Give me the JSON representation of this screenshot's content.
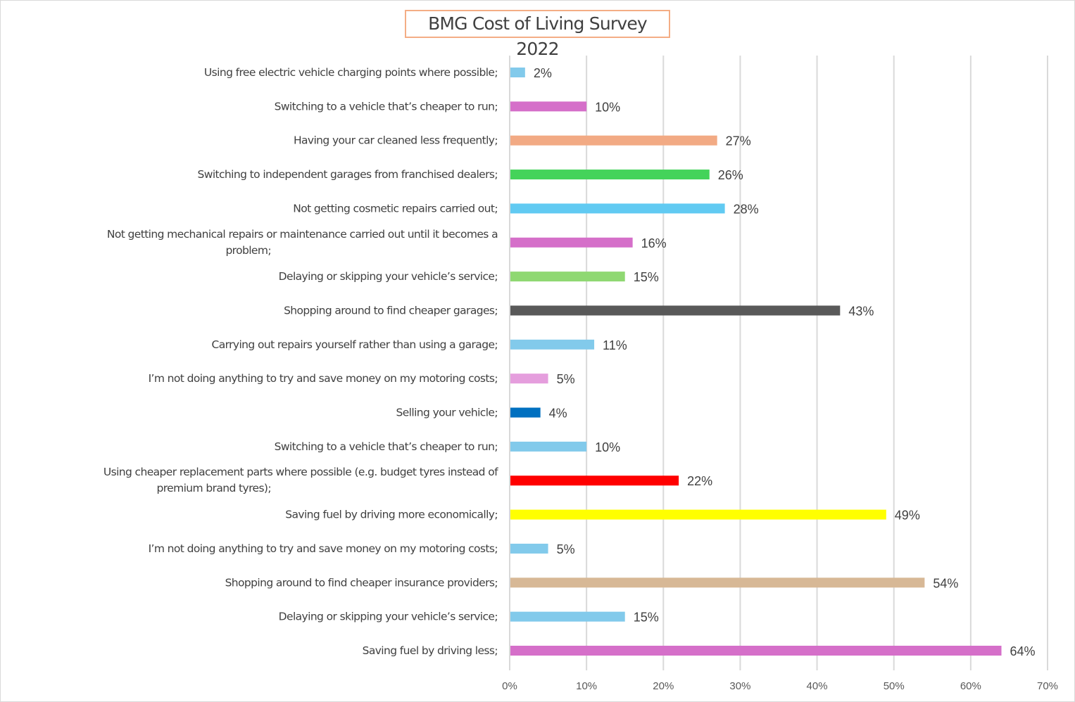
{
  "chart_data": {
    "type": "bar",
    "orientation": "horizontal",
    "title": "BMG Cost of Living Survey 2022",
    "xlabel": "",
    "ylabel": "",
    "xlim": [
      0,
      70
    ],
    "x_ticks": [
      "0%",
      "10%",
      "20%",
      "30%",
      "40%",
      "50%",
      "60%",
      "70%"
    ],
    "grid": "vertical",
    "legend": "none",
    "categories": [
      "Using free electric vehicle charging points where possible;",
      "Switching to a vehicle that’s cheaper to run;",
      "Having your car cleaned less frequently;",
      "Switching to independent garages from franchised dealers;",
      "Not getting cosmetic repairs carried out;",
      "Not getting mechanical repairs or maintenance carried out until it becomes a problem;",
      "Delaying or skipping your vehicle’s service;",
      "Shopping around to find cheaper garages;",
      "Carrying out repairs yourself rather than using a garage;",
      "I’m not doing anything to try and save money on my motoring costs;",
      "Selling your vehicle;",
      "Switching to a vehicle that’s cheaper to run;",
      "Using cheaper replacement parts where possible (e.g. budget tyres instead of premium brand tyres);",
      "Saving fuel by driving more economically;",
      "I’m not doing anything to try and save money on my motoring costs;",
      "Shopping around to find cheaper insurance providers;",
      "Delaying or skipping your vehicle’s service;",
      "Saving fuel by driving less;"
    ],
    "values": [
      2,
      10,
      27,
      26,
      28,
      16,
      15,
      43,
      11,
      5,
      4,
      10,
      22,
      49,
      5,
      54,
      15,
      64
    ],
    "data_labels": [
      "2%",
      "10%",
      "27%",
      "26%",
      "28%",
      "16%",
      "15%",
      "43%",
      "11%",
      "5%",
      "4%",
      "10%",
      "22%",
      "49%",
      "5%",
      "54%",
      "15%",
      "64%"
    ],
    "colors": [
      "#82CAEB",
      "#D56FC9",
      "#F2AA84",
      "#44D35A",
      "#61CAF2",
      "#D56FC9",
      "#8FD872",
      "#595959",
      "#82CAEB",
      "#E59EDD",
      "#0070C0",
      "#82CAEB",
      "#FF0000",
      "#FFFF00",
      "#82CAEB",
      "#D7B896",
      "#82CAEB",
      "#D56FC9"
    ]
  }
}
